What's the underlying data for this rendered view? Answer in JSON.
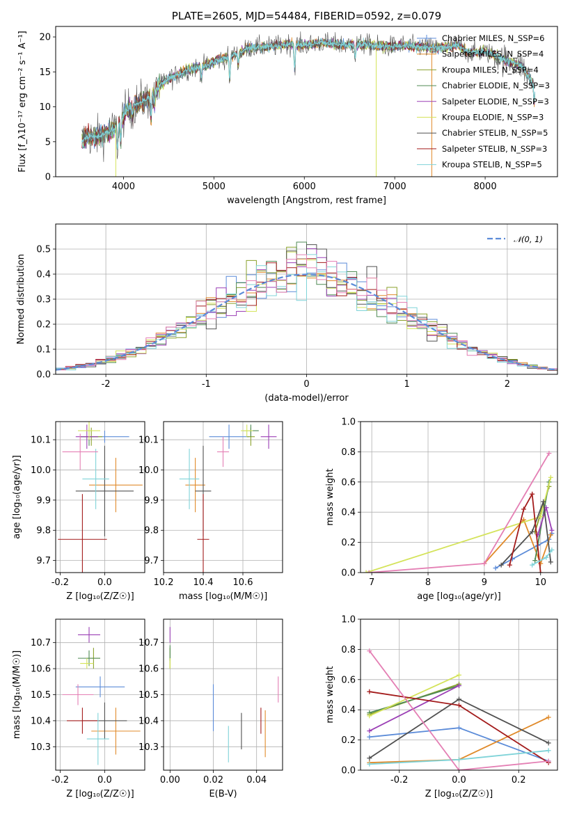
{
  "figure": {
    "title": "PLATE=2605, MJD=54484, FIBERID=0592, z=0.079"
  },
  "colors": {
    "blue": "#5b8bd8",
    "orange": "#e08a2a",
    "olive": "#8aa12b",
    "green": "#4f8a54",
    "purple": "#9b3fb5",
    "yellowgreen": "#d4e35a",
    "darkgray": "#505050",
    "darkred": "#a31b1b",
    "cyan": "#7fd3d8",
    "pink": "#e47fb4",
    "grid": "#b0b0b0",
    "normal": "#5b8bd8"
  },
  "chart_data": [
    {
      "id": "spectrum",
      "type": "line",
      "title": "PLATE=2605, MJD=54484, FIBERID=0592, z=0.079",
      "xlabel": "wavelength [Angstrom, rest frame]",
      "ylabel": "Flux [f_λ10⁻¹⁷ erg cm⁻² s⁻¹ A⁻¹]",
      "xlim": [
        3250,
        8800
      ],
      "ylim": [
        0,
        21.5
      ],
      "xticks": [
        4000,
        5000,
        6000,
        7000,
        8000
      ],
      "yticks": [
        0,
        5,
        10,
        15,
        20
      ],
      "grid": false,
      "legend_position": "top-right",
      "spectrum_envelope": {
        "x": [
          3540,
          3600,
          3700,
          3800,
          3900,
          4000,
          4100,
          4200,
          4300,
          4400,
          4500,
          4600,
          4700,
          4800,
          4900,
          5000,
          5100,
          5200,
          5300,
          5400,
          5500,
          5600,
          5700,
          5800,
          5900,
          6000,
          6100,
          6200,
          6300,
          6400,
          6500,
          6600,
          6700,
          6800,
          6900,
          7000,
          7100,
          7200,
          7300,
          7400,
          7500,
          7600,
          7700,
          7800,
          7900,
          8000,
          8100,
          8200,
          8300,
          8400,
          8550
        ],
        "y": [
          5.2,
          5.8,
          5.6,
          6.2,
          6.8,
          8.8,
          10.2,
          10.8,
          11.4,
          13.0,
          14.0,
          14.6,
          15.3,
          15.6,
          15.8,
          16.5,
          16.9,
          17.3,
          17.8,
          18.5,
          18.5,
          18.6,
          18.7,
          19.0,
          18.9,
          18.8,
          19.0,
          19.2,
          19.0,
          18.9,
          18.9,
          18.9,
          18.9,
          18.7,
          18.6,
          18.7,
          18.8,
          18.6,
          18.6,
          18.4,
          18.4,
          18.6,
          18.9,
          17.8,
          17.8,
          17.9,
          17.4,
          16.8,
          16.4,
          15.9,
          13.0
        ]
      },
      "spectral_features": [
        {
          "x": 3934,
          "depth": 3.5
        },
        {
          "x": 3969,
          "depth": 3.0
        },
        {
          "x": 4102,
          "depth": 1.5
        },
        {
          "x": 4304,
          "depth": 3.0
        },
        {
          "x": 4341,
          "depth": 1.5
        },
        {
          "x": 4861,
          "depth": 1.5
        },
        {
          "x": 5175,
          "depth": 3.5
        },
        {
          "x": 5270,
          "depth": 1.5
        },
        {
          "x": 5893,
          "depth": 3.5
        },
        {
          "x": 6563,
          "depth": 1.8
        },
        {
          "x": 8542,
          "depth": 2.5
        }
      ],
      "artifacts": [
        {
          "x": 3915,
          "ymin": 0,
          "color_key": "yellowgreen"
        },
        {
          "x": 6795,
          "ymin": 0,
          "color_key": "yellowgreen"
        },
        {
          "x": 7410,
          "ymin": 0,
          "color_key": "orange"
        }
      ],
      "series": [
        {
          "name": "Chabrier MILES, N_SSP=6",
          "color_key": "blue"
        },
        {
          "name": "Salpeter MILES, N_SSP=4",
          "color_key": "orange"
        },
        {
          "name": "Kroupa MILES, N_SSP=4",
          "color_key": "olive"
        },
        {
          "name": "Chabrier ELODIE, N_SSP=3",
          "color_key": "green"
        },
        {
          "name": "Salpeter ELODIE, N_SSP=3",
          "color_key": "purple"
        },
        {
          "name": "Kroupa ELODIE, N_SSP=3",
          "color_key": "yellowgreen"
        },
        {
          "name": "Chabrier STELIB, N_SSP=5",
          "color_key": "darkgray"
        },
        {
          "name": "Salpeter STELIB, N_SSP=3",
          "color_key": "darkred"
        },
        {
          "name": "Kroupa STELIB, N_SSP=5",
          "color_key": "cyan"
        }
      ]
    },
    {
      "id": "residuals",
      "type": "line",
      "xlabel": "(data-model)/error",
      "ylabel": "Normed distribution",
      "xlim": [
        -2.5,
        2.5
      ],
      "ylim": [
        0,
        0.6
      ],
      "xticks": [
        -2,
        -1,
        0,
        1,
        2
      ],
      "yticks": [
        0.0,
        0.1,
        0.2,
        0.3,
        0.4,
        0.5
      ],
      "grid": true,
      "legend_position": "top-right",
      "legend": "𝒩(0, 1)",
      "bin_width": 0.1,
      "bin_start": -2.5,
      "normal_curve": {
        "mean": 0,
        "sigma": 1
      }
    },
    {
      "id": "age_vs_z",
      "type": "scatter",
      "xlabel": "Z [log₁₀(Z/Z☉)]",
      "ylabel": "age  [log₁₀(age/yr)]",
      "xlim": [
        -0.22,
        0.18
      ],
      "ylim": [
        9.66,
        10.16
      ],
      "xticks": [
        -0.2,
        0.0
      ],
      "yticks": [
        9.7,
        9.8,
        9.9,
        10.0,
        10.1
      ],
      "grid": true,
      "points": [
        {
          "color_key": "blue",
          "x": 0.0,
          "y": 10.11,
          "xerr": 0.11,
          "yerr": 0.02
        },
        {
          "color_key": "orange",
          "x": 0.05,
          "y": 9.95,
          "xerr": 0.12,
          "yerr": 0.09
        },
        {
          "color_key": "olive",
          "x": -0.06,
          "y": 10.11,
          "xerr": 0.05,
          "yerr": 0.03
        },
        {
          "color_key": "green",
          "x": -0.07,
          "y": 10.11,
          "xerr": 0.04,
          "yerr": 0.03
        },
        {
          "color_key": "purple",
          "x": -0.08,
          "y": 10.11,
          "xerr": 0.05,
          "yerr": 0.04
        },
        {
          "color_key": "yellowgreen",
          "x": -0.07,
          "y": 10.13,
          "xerr": 0.05,
          "yerr": 0.03
        },
        {
          "color_key": "darkgray",
          "x": 0.0,
          "y": 9.93,
          "xerr": 0.13,
          "yerr": 0.15
        },
        {
          "color_key": "darkred",
          "x": -0.1,
          "y": 9.77,
          "xerr": 0.11,
          "yerr": 0.15
        },
        {
          "color_key": "cyan",
          "x": -0.04,
          "y": 9.97,
          "xerr": 0.06,
          "yerr": 0.1
        },
        {
          "color_key": "pink",
          "x": -0.11,
          "y": 10.06,
          "xerr": 0.08,
          "yerr": 0.06
        }
      ]
    },
    {
      "id": "age_vs_mass",
      "type": "scatter",
      "xlabel": "mass [log₁₀(M/M☉)]",
      "ylabel": "",
      "xlim": [
        10.2,
        10.8
      ],
      "ylim": [
        9.66,
        10.16
      ],
      "xticks": [
        10.2,
        10.4,
        10.6
      ],
      "yticks": [
        9.7,
        9.8,
        9.9,
        10.0,
        10.1
      ],
      "grid": true,
      "points": [
        {
          "color_key": "blue",
          "x": 10.53,
          "y": 10.11,
          "xerr": 0.1,
          "yerr": 0.04
        },
        {
          "color_key": "orange",
          "x": 10.36,
          "y": 9.95,
          "xerr": 0.05,
          "yerr": 0.09
        },
        {
          "color_key": "olive",
          "x": 10.64,
          "y": 10.11,
          "xerr": 0.02,
          "yerr": 0.03
        },
        {
          "color_key": "green",
          "x": 10.64,
          "y": 10.13,
          "xerr": 0.04,
          "yerr": 0.02
        },
        {
          "color_key": "purple",
          "x": 10.73,
          "y": 10.11,
          "xerr": 0.04,
          "yerr": 0.04
        },
        {
          "color_key": "yellowgreen",
          "x": 10.62,
          "y": 10.13,
          "xerr": 0.03,
          "yerr": 0.02
        },
        {
          "color_key": "darkgray",
          "x": 10.4,
          "y": 9.93,
          "xerr": 0.04,
          "yerr": 0.15
        },
        {
          "color_key": "darkred",
          "x": 10.4,
          "y": 9.77,
          "xerr": 0.03,
          "yerr": 0.15
        },
        {
          "color_key": "cyan",
          "x": 10.33,
          "y": 9.97,
          "xerr": 0.05,
          "yerr": 0.1
        },
        {
          "color_key": "pink",
          "x": 10.5,
          "y": 10.06,
          "xerr": 0.03,
          "yerr": 0.05
        }
      ]
    },
    {
      "id": "weight_vs_age",
      "type": "line",
      "xlabel": "age  [log₁₀(age/yr)]",
      "ylabel": "mass weight",
      "xlim": [
        6.8,
        10.3
      ],
      "ylim": [
        0,
        1
      ],
      "xticks": [
        7,
        8,
        9,
        10
      ],
      "yticks": [
        0.0,
        0.2,
        0.4,
        0.6,
        0.8,
        1.0
      ],
      "grid": true,
      "series": [
        {
          "color_key": "blue",
          "x": [
            9.2,
            9.5,
            9.95,
            10.15,
            10.2
          ],
          "y": [
            0.03,
            0.09,
            0.18,
            0.22,
            0.26
          ]
        },
        {
          "color_key": "orange",
          "x": [
            9.0,
            9.7,
            10.0,
            10.18
          ],
          "y": [
            0.06,
            0.35,
            0.06,
            0.25
          ]
        },
        {
          "color_key": "olive",
          "x": [
            9.9,
            10.15
          ],
          "y": [
            0.27,
            0.57
          ]
        },
        {
          "color_key": "green",
          "x": [
            9.9,
            10.15
          ],
          "y": [
            0.08,
            0.6
          ]
        },
        {
          "color_key": "purple",
          "x": [
            9.95,
            10.1,
            10.2
          ],
          "y": [
            0.25,
            0.43,
            0.28
          ]
        },
        {
          "color_key": "yellowgreen",
          "x": [
            6.9,
            10.0,
            10.18
          ],
          "y": [
            0.0,
            0.37,
            0.63
          ]
        },
        {
          "color_key": "darkgray",
          "x": [
            9.3,
            9.85,
            10.05,
            10.18
          ],
          "y": [
            0.05,
            0.27,
            0.47,
            0.07
          ]
        },
        {
          "color_key": "darkred",
          "x": [
            9.45,
            9.7,
            9.85,
            10.0
          ],
          "y": [
            0.05,
            0.42,
            0.52,
            0.0
          ]
        },
        {
          "color_key": "cyan",
          "x": [
            9.85,
            10.1,
            10.2
          ],
          "y": [
            0.05,
            0.1,
            0.15
          ]
        },
        {
          "color_key": "pink",
          "x": [
            6.95,
            9.0,
            10.15
          ],
          "y": [
            0.0,
            0.06,
            0.79
          ]
        }
      ]
    },
    {
      "id": "mass_vs_z",
      "type": "scatter",
      "xlabel": "Z [log₁₀(Z/Z☉)]",
      "ylabel": "mass [log₁₀(M/M☉)]",
      "xlim": [
        -0.22,
        0.18
      ],
      "ylim": [
        10.21,
        10.79
      ],
      "xticks": [
        -0.2,
        0.0
      ],
      "yticks": [
        10.3,
        10.4,
        10.5,
        10.6,
        10.7
      ],
      "grid": true,
      "points": [
        {
          "color_key": "blue",
          "x": -0.02,
          "y": 10.53,
          "xerr": 0.11,
          "yerr": 0.04
        },
        {
          "color_key": "orange",
          "x": 0.05,
          "y": 10.36,
          "xerr": 0.11,
          "yerr": 0.09
        },
        {
          "color_key": "olive",
          "x": -0.05,
          "y": 10.64,
          "xerr": 0.03,
          "yerr": 0.04
        },
        {
          "color_key": "green",
          "x": -0.07,
          "y": 10.64,
          "xerr": 0.05,
          "yerr": 0.03
        },
        {
          "color_key": "purple",
          "x": -0.07,
          "y": 10.73,
          "xerr": 0.05,
          "yerr": 0.03
        },
        {
          "color_key": "yellowgreen",
          "x": -0.08,
          "y": 10.62,
          "xerr": 0.03,
          "yerr": 0.02
        },
        {
          "color_key": "darkgray",
          "x": 0.0,
          "y": 10.4,
          "xerr": 0.1,
          "yerr": 0.07
        },
        {
          "color_key": "darkred",
          "x": -0.1,
          "y": 10.4,
          "xerr": 0.07,
          "yerr": 0.05
        },
        {
          "color_key": "cyan",
          "x": -0.03,
          "y": 10.33,
          "xerr": 0.05,
          "yerr": 0.1
        },
        {
          "color_key": "pink",
          "x": -0.12,
          "y": 10.5,
          "xerr": 0.07,
          "yerr": 0.04
        }
      ]
    },
    {
      "id": "mass_vs_ebv",
      "type": "scatter",
      "xlabel": "E(B-V)",
      "ylabel": "",
      "xlim": [
        -0.003,
        0.052
      ],
      "ylim": [
        10.21,
        10.79
      ],
      "xticks": [
        0.0,
        0.02,
        0.04
      ],
      "yticks": [
        10.3,
        10.4,
        10.5,
        10.6,
        10.7
      ],
      "grid": true,
      "points": [
        {
          "color_key": "blue",
          "x": 0.02,
          "y": 10.45,
          "yerr": 0.09
        },
        {
          "color_key": "orange",
          "x": 0.044,
          "y": 10.35,
          "yerr": 0.09
        },
        {
          "color_key": "olive",
          "x": 0.0,
          "y": 10.64,
          "yerr": 0.04
        },
        {
          "color_key": "green",
          "x": 0.0,
          "y": 10.66,
          "yerr": 0.03
        },
        {
          "color_key": "purple",
          "x": 0.0,
          "y": 10.73,
          "yerr": 0.03
        },
        {
          "color_key": "yellowgreen",
          "x": 0.0,
          "y": 10.62,
          "yerr": 0.02
        },
        {
          "color_key": "darkgray",
          "x": 0.033,
          "y": 10.36,
          "yerr": 0.07
        },
        {
          "color_key": "darkred",
          "x": 0.042,
          "y": 10.4,
          "yerr": 0.05
        },
        {
          "color_key": "cyan",
          "x": 0.027,
          "y": 10.31,
          "yerr": 0.07
        },
        {
          "color_key": "pink",
          "x": 0.05,
          "y": 10.52,
          "yerr": 0.05
        }
      ]
    },
    {
      "id": "weight_vs_z",
      "type": "line",
      "xlabel": "Z [log₁₀(Z/Z☉)]",
      "ylabel": "mass weight",
      "xlim": [
        -0.33,
        0.33
      ],
      "ylim": [
        0,
        1
      ],
      "xticks": [
        -0.2,
        0.0,
        0.2
      ],
      "yticks": [
        0.0,
        0.2,
        0.4,
        0.6,
        0.8,
        1.0
      ],
      "grid": true,
      "series": [
        {
          "color_key": "blue",
          "x": [
            -0.3,
            0.0,
            0.3
          ],
          "y": [
            0.22,
            0.28,
            0.06
          ]
        },
        {
          "color_key": "orange",
          "x": [
            -0.3,
            0.0,
            0.3
          ],
          "y": [
            0.05,
            0.07,
            0.35
          ]
        },
        {
          "color_key": "olive",
          "x": [
            -0.3,
            0.0
          ],
          "y": [
            0.37,
            0.57
          ]
        },
        {
          "color_key": "green",
          "x": [
            -0.3,
            0.0
          ],
          "y": [
            0.38,
            0.56
          ]
        },
        {
          "color_key": "purple",
          "x": [
            -0.3,
            0.0
          ],
          "y": [
            0.26,
            0.56
          ]
        },
        {
          "color_key": "yellowgreen",
          "x": [
            -0.3,
            0.0
          ],
          "y": [
            0.36,
            0.63
          ]
        },
        {
          "color_key": "darkgray",
          "x": [
            -0.3,
            0.0,
            0.3
          ],
          "y": [
            0.08,
            0.47,
            0.18
          ]
        },
        {
          "color_key": "darkred",
          "x": [
            -0.3,
            0.0,
            0.3
          ],
          "y": [
            0.52,
            0.43,
            0.05
          ]
        },
        {
          "color_key": "cyan",
          "x": [
            -0.3,
            0.0,
            0.3
          ],
          "y": [
            0.04,
            0.07,
            0.13
          ]
        },
        {
          "color_key": "pink",
          "x": [
            -0.3,
            0.0,
            0.3
          ],
          "y": [
            0.79,
            0.0,
            0.06
          ]
        }
      ]
    }
  ]
}
